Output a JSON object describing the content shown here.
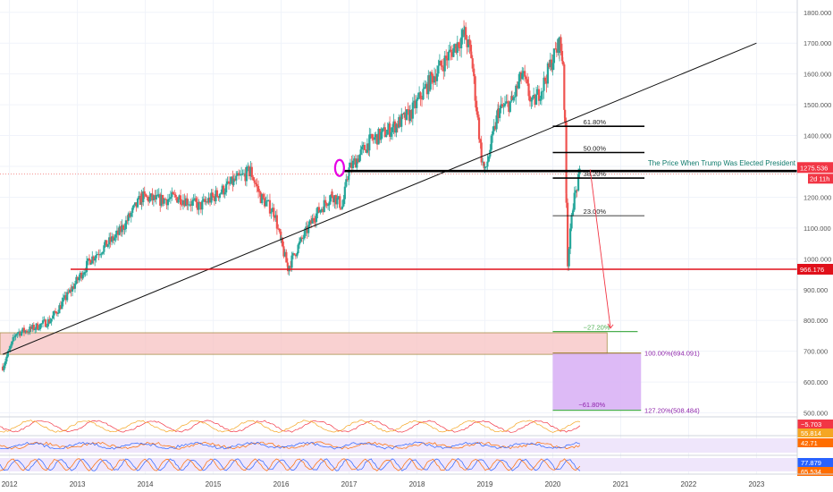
{
  "chart_data": {
    "type": "candlestick",
    "instrument_timeframe": "weekly",
    "x_axis_ticks": [
      "2012",
      "2013",
      "2014",
      "2015",
      "2016",
      "2017",
      "2018",
      "2019",
      "2020",
      "2021",
      "2022",
      "2023"
    ],
    "y_axis_ticks": [
      "1800.000",
      "1700.000",
      "1600.000",
      "1500.000",
      "1400.000",
      "1300.000",
      "1200.000",
      "1100.000",
      "1000.000",
      "900.000",
      "800.000",
      "700.000",
      "600.000",
      "500.000"
    ],
    "ylim": [
      490,
      1840
    ],
    "xlim": [
      2011.86,
      2023.6
    ],
    "price_anchors": [
      [
        2011.9,
        650
      ],
      [
        2012.1,
        760
      ],
      [
        2012.3,
        770
      ],
      [
        2012.6,
        800
      ],
      [
        2012.85,
        880
      ],
      [
        2013.2,
        1000
      ],
      [
        2013.6,
        1080
      ],
      [
        2013.95,
        1200
      ],
      [
        2014.2,
        1190
      ],
      [
        2014.5,
        1200
      ],
      [
        2014.8,
        1170
      ],
      [
        2015.0,
        1200
      ],
      [
        2015.3,
        1250
      ],
      [
        2015.55,
        1285
      ],
      [
        2015.7,
        1200
      ],
      [
        2015.9,
        1150
      ],
      [
        2016.0,
        1050
      ],
      [
        2016.1,
        970
      ],
      [
        2016.25,
        1040
      ],
      [
        2016.5,
        1140
      ],
      [
        2016.75,
        1210
      ],
      [
        2016.9,
        1170
      ],
      [
        2017.0,
        1290
      ],
      [
        2017.3,
        1380
      ],
      [
        2017.6,
        1420
      ],
      [
        2017.9,
        1470
      ],
      [
        2018.2,
        1580
      ],
      [
        2018.5,
        1670
      ],
      [
        2018.7,
        1730
      ],
      [
        2018.8,
        1660
      ],
      [
        2018.95,
        1330
      ],
      [
        2019.0,
        1280
      ],
      [
        2019.2,
        1480
      ],
      [
        2019.4,
        1510
      ],
      [
        2019.55,
        1600
      ],
      [
        2019.7,
        1500
      ],
      [
        2019.85,
        1560
      ],
      [
        2020.0,
        1650
      ],
      [
        2020.1,
        1700
      ],
      [
        2020.15,
        1640
      ],
      [
        2020.18,
        1420
      ],
      [
        2020.2,
        1200
      ],
      [
        2020.22,
        990
      ],
      [
        2020.3,
        1180
      ],
      [
        2020.4,
        1275
      ]
    ],
    "last_price": "1275.536",
    "last_price_countdown": "2d 11h",
    "horizontal_levels": [
      {
        "price": 966.176,
        "label": "966.176",
        "color": "#e0101a"
      },
      {
        "price": 1285,
        "label": "The Price When Trump Was Elected President",
        "color": "#000000"
      }
    ],
    "trendline": {
      "start": [
        2011.9,
        690
      ],
      "end": [
        2023.0,
        1700
      ]
    },
    "fibonacci_levels": [
      {
        "label": "61.80%",
        "price": 1430
      },
      {
        "label": "50.00%",
        "price": 1345
      },
      {
        "label": "38.20%",
        "price": 1262
      },
      {
        "label": "23.00%",
        "price": 1140
      },
      {
        "label": "−27.20%",
        "price": 764
      }
    ],
    "target_labels": [
      {
        "label": "100.00%(694.091)",
        "price": 694.091
      },
      {
        "label": "127.20%(508.484)",
        "price": 508.484
      },
      {
        "label": "−61.80%",
        "price": 510
      }
    ],
    "support_zone": {
      "price_top": 760,
      "price_bottom": 690,
      "x_start": 2011.86,
      "x_end": 2020.8
    },
    "projection_box": {
      "price_top": 694,
      "price_bottom": 508,
      "x_start": 2020.0,
      "x_end": 2021.3
    },
    "indicator_panels": [
      {
        "name": "oscillator",
        "values": [
          "−5.703",
          "55.814"
        ],
        "colors": [
          "#f23645",
          "#f5a623"
        ]
      },
      {
        "name": "rsi",
        "values": [
          "42.71"
        ],
        "colors": [
          "#ff6d00"
        ]
      },
      {
        "name": "stochastic",
        "values": [
          "77.879",
          "65.534"
        ],
        "colors": [
          "#2962ff",
          "#ff6d00"
        ]
      }
    ],
    "colors": {
      "up": "#26a69a",
      "down": "#ef5350",
      "level": "#e0101a",
      "zone_fill": "#f8c9c9",
      "proj_fill": "#d9b3f5",
      "fib": "#000000"
    }
  }
}
